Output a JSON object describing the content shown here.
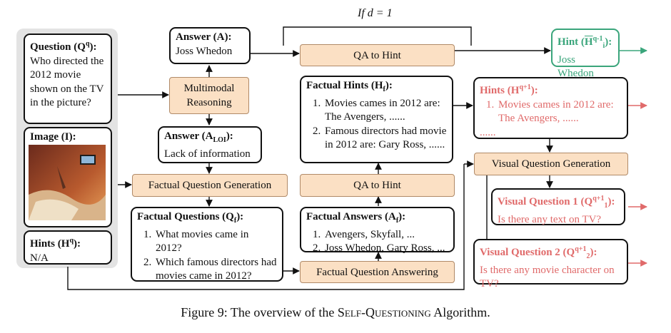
{
  "question": {
    "label": "Question (Q",
    "label_sup": "q",
    "label_end": "):",
    "text": "Who directed the 2012 movie shown on the TV in the picture?"
  },
  "image": {
    "label": "Image (I):"
  },
  "hints_input": {
    "label": "Hints (H",
    "label_sup": "q",
    "label_end": "):",
    "text": "N/A"
  },
  "answer": {
    "label": "Answer (A):",
    "text": "Joss Whedon"
  },
  "multimodal": {
    "label": "Multimodal Reasoning"
  },
  "answer_loi": {
    "label": "Answer (A",
    "label_sub": "LOI",
    "label_end": "):",
    "text": "Lack of information"
  },
  "fq_generation": {
    "label": "Factual Question Generation"
  },
  "factual_questions": {
    "label": "Factual Questions (Q",
    "label_sub": "f",
    "label_end": "):",
    "items": [
      "What movies came in 2012?",
      "Which famous directors had movies came in 2012?"
    ]
  },
  "condition": "If d = 1",
  "qa_to_hint_top": {
    "label": "QA to Hint"
  },
  "factual_hints": {
    "label": "Factual Hints (H",
    "label_sub": "f",
    "label_end": "):",
    "items": [
      "Movies cames in 2012 are: The Avengers, ......",
      "Famous directors had movie in 2012 are: Gary Ross, ......"
    ]
  },
  "qa_to_hint_mid": {
    "label": "QA to Hint"
  },
  "factual_answers": {
    "label": "Factual Answers (A",
    "label_sub": "f",
    "label_end": "):",
    "items": [
      "Avengers, Skyfall, ...",
      "Joss Whedon, Gary Ross, ..."
    ]
  },
  "fq_answering": {
    "label": "Factual Question Answering"
  },
  "hint_out": {
    "label": "Hint (",
    "label_h": "H",
    "label_sup": "q-1",
    "label_sub": "i",
    "label_end": "):",
    "text": "Joss Whedon"
  },
  "hints_next": {
    "label": "Hints (H",
    "label_sup": "q+1",
    "label_end": "):",
    "items": [
      "Movies cames in 2012 are: The Avengers, ......"
    ],
    "more": "......"
  },
  "vq_generation": {
    "label": "Visual Question Generation"
  },
  "vq1": {
    "label": "Visual Question 1 (Q",
    "label_sup": "q+1",
    "label_sub": "1",
    "label_end": "):",
    "text": "Is there any text on TV?"
  },
  "vq2": {
    "label": "Visual Question 2 (Q",
    "label_sup": "q+1",
    "label_sub": "2",
    "label_end": "):",
    "text": "Is there any movie character on TV?"
  },
  "caption": {
    "prefix": "Figure 9: The overview of the ",
    "name": "Self-Questioning",
    "suffix": " Algorithm."
  },
  "colors": {
    "process_fill": "#fbe0c4",
    "red": "#e06a6a",
    "green": "#3aa57b",
    "panel": "#e3e3e3"
  }
}
